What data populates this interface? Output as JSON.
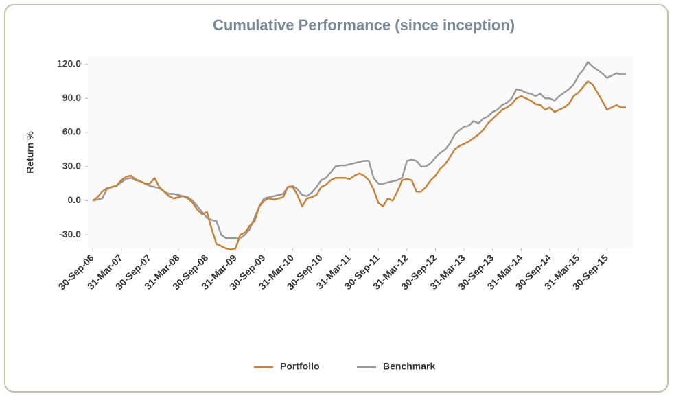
{
  "chart_data": {
    "type": "line",
    "title": "Cumulative Performance (since inception)",
    "y_label": "Return %",
    "categories": [
      "30-Sep-06",
      null,
      null,
      null,
      null,
      null,
      "31-Mar-07",
      null,
      null,
      null,
      null,
      null,
      "30-Sep-07",
      null,
      null,
      null,
      null,
      null,
      "31-Mar-08",
      null,
      null,
      null,
      null,
      null,
      "30-Sep-08",
      null,
      null,
      null,
      null,
      null,
      "31-Mar-09",
      null,
      null,
      null,
      null,
      null,
      "30-Sep-09",
      null,
      null,
      null,
      null,
      null,
      "31-Mar-10",
      null,
      null,
      null,
      null,
      null,
      "30-Sep-10",
      null,
      null,
      null,
      null,
      null,
      "31-Mar-11",
      null,
      null,
      null,
      null,
      null,
      "30-Sep-11",
      null,
      null,
      null,
      null,
      null,
      "31-Mar-12",
      null,
      null,
      null,
      null,
      null,
      "30-Sep-12",
      null,
      null,
      null,
      null,
      null,
      "31-Mar-13",
      null,
      null,
      null,
      null,
      null,
      "30-Sep-13",
      null,
      null,
      null,
      null,
      null,
      "31-Mar-14",
      null,
      null,
      null,
      null,
      null,
      "30-Sep-14",
      null,
      null,
      null,
      null,
      null,
      "31-Mar-15",
      null,
      null,
      null,
      null,
      null,
      "30-Sep-15",
      null,
      null,
      null,
      null
    ],
    "series": [
      {
        "name": "Portfolio",
        "color": "#c8823a",
        "values": [
          0,
          3,
          8,
          11,
          12,
          13,
          18,
          21,
          22,
          19,
          17,
          15,
          15,
          20,
          12,
          8,
          4,
          2,
          3,
          4,
          2,
          -2,
          -8,
          -12,
          -10,
          -25,
          -38,
          -40,
          -42,
          -43,
          -42,
          -30,
          -28,
          -22,
          -18,
          -5,
          0,
          2,
          1,
          2,
          3,
          12,
          12,
          5,
          -5,
          2,
          3,
          5,
          12,
          14,
          18,
          20,
          20,
          20,
          19,
          22,
          24,
          22,
          18,
          10,
          -2,
          -5,
          2,
          0,
          8,
          18,
          19,
          18,
          8,
          8,
          12,
          18,
          22,
          28,
          32,
          38,
          45,
          48,
          50,
          52,
          55,
          58,
          62,
          68,
          72,
          76,
          80,
          82,
          85,
          90,
          92,
          90,
          88,
          85,
          84,
          80,
          82,
          78,
          80,
          82,
          85,
          92,
          95,
          100,
          105,
          102,
          95,
          88,
          80,
          82,
          84,
          82,
          82
        ]
      },
      {
        "name": "Benchmark",
        "color": "#9a9a9a",
        "values": [
          0,
          1,
          2,
          10,
          12,
          13,
          16,
          19,
          20,
          18,
          17,
          15,
          13,
          12,
          11,
          8,
          6,
          6,
          5,
          4,
          3,
          0,
          -5,
          -10,
          -15,
          -17,
          -18,
          -30,
          -33,
          -33,
          -33,
          -33,
          -30,
          -25,
          -15,
          -5,
          2,
          3,
          4,
          5,
          6,
          12,
          13,
          10,
          5,
          4,
          7,
          12,
          18,
          20,
          25,
          30,
          31,
          31,
          32,
          33,
          34,
          35,
          35,
          20,
          15,
          15,
          16,
          17,
          18,
          20,
          35,
          36,
          35,
          30,
          30,
          33,
          38,
          42,
          45,
          50,
          58,
          62,
          65,
          66,
          70,
          68,
          72,
          74,
          78,
          80,
          84,
          86,
          90,
          98,
          97,
          95,
          94,
          92,
          94,
          90,
          90,
          88,
          92,
          95,
          98,
          102,
          110,
          115,
          122,
          118,
          115,
          112,
          108,
          110,
          112,
          111,
          111
        ]
      }
    ],
    "ylim": [
      -42,
      127
    ],
    "yticks": [
      {
        "value": -30,
        "label": "-30.0"
      },
      {
        "value": 0,
        "label": "0.0"
      },
      {
        "value": 30,
        "label": "30.0"
      },
      {
        "value": 60,
        "label": "60.0"
      },
      {
        "value": 90,
        "label": "90.0"
      },
      {
        "value": 120,
        "label": "120.0"
      }
    ],
    "legend": "bottom"
  }
}
